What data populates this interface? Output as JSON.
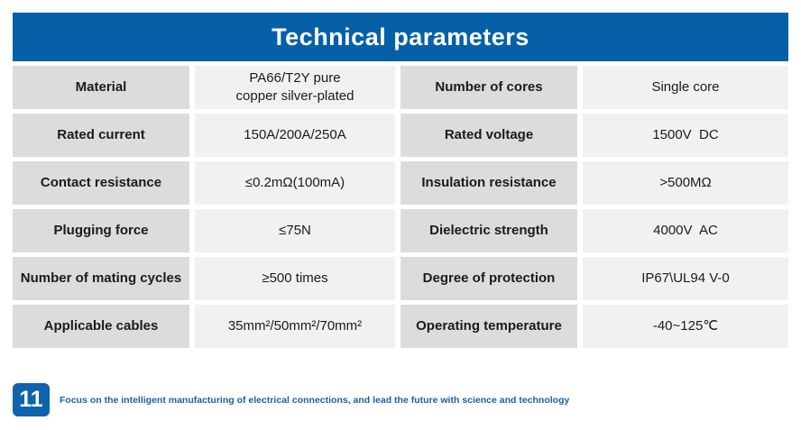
{
  "colors": {
    "banner_blue": "#0560a8",
    "badge_blue": "#0f63ab",
    "slogan_blue": "#1b5fa8",
    "label_cell_gray": "#dcdcdc",
    "value_cell_gray": "#f1f1f1",
    "text_dark": "#1b1b1b",
    "title_white": "#ffffff"
  },
  "header": {
    "title": "Technical parameters"
  },
  "table": {
    "rows": [
      {
        "left_label": "Material",
        "left_value": "PA66/T2Y pure\ncopper silver-plated",
        "right_label": "Number of cores",
        "right_value": "Single core"
      },
      {
        "left_label": "Rated current",
        "left_value": "150A/200A/250A",
        "right_label": "Rated voltage",
        "right_value": "1500V  DC"
      },
      {
        "left_label": "Contact resistance",
        "left_value": "≤0.2mΩ(100mA)",
        "right_label": "Insulation resistance",
        "right_value": ">500MΩ"
      },
      {
        "left_label": "Plugging force",
        "left_value": "≤75N",
        "right_label": "Dielectric strength",
        "right_value": "4000V  AC"
      },
      {
        "left_label": "Number of mating cycles",
        "left_value": "≥500 times",
        "right_label": "Degree of protection",
        "right_value": "IP67\\UL94 V-0"
      },
      {
        "left_label": "Applicable cables",
        "left_value": "35mm²/50mm²/70mm²",
        "right_label": "Operating temperature",
        "right_value": "-40~125℃"
      }
    ]
  },
  "footer": {
    "page_number": "11",
    "slogan": "Focus on the intelligent manufacturing of electrical connections, and lead the future with science and technology"
  }
}
